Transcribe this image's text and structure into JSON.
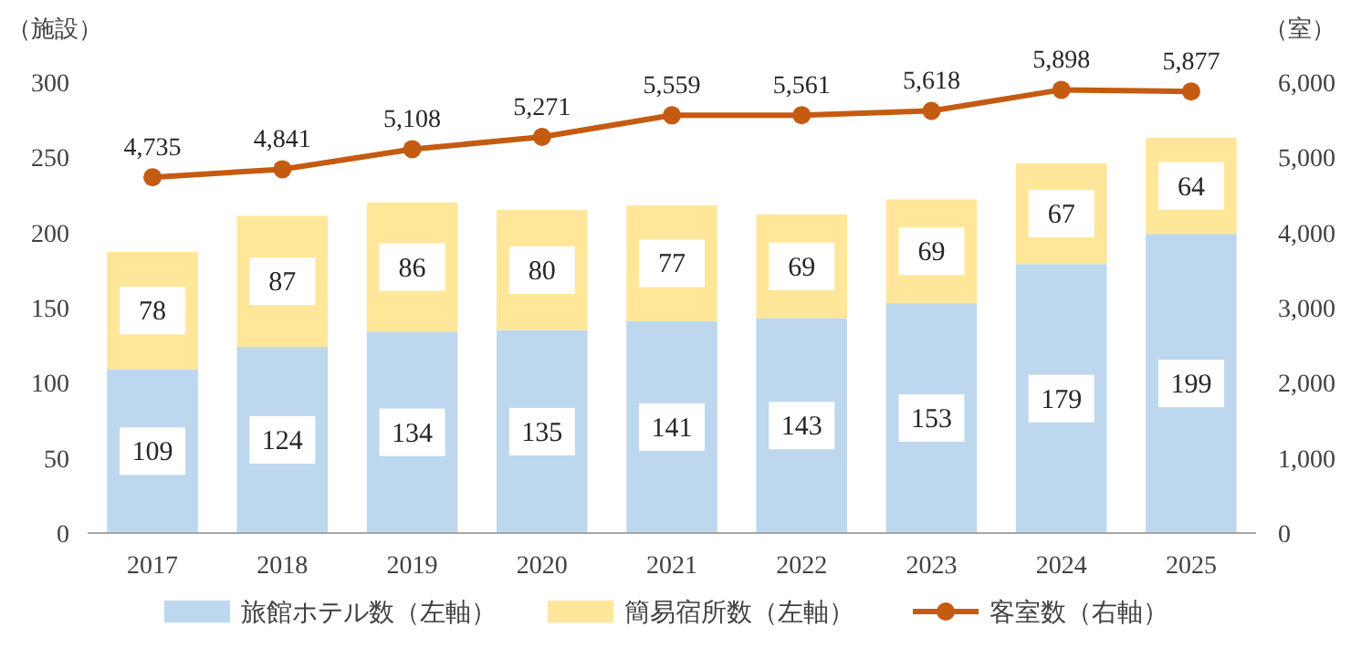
{
  "chart_data": {
    "type": "bar",
    "stacked": true,
    "categories": [
      "2017",
      "2018",
      "2019",
      "2020",
      "2021",
      "2022",
      "2023",
      "2024",
      "2025"
    ],
    "series": [
      {
        "name": "旅館ホテル数（左軸）",
        "color": "#bdd7ee",
        "values": [
          109,
          124,
          134,
          135,
          141,
          143,
          153,
          179,
          199
        ]
      },
      {
        "name": "簡易宿所数（左軸）",
        "color": "#ffe699",
        "values": [
          78,
          87,
          86,
          80,
          77,
          69,
          69,
          67,
          64
        ]
      },
      {
        "name": "客室数（右軸）",
        "type": "line",
        "axis": "y2",
        "color": "#c55a11",
        "marker": "circle",
        "values": [
          4735,
          4841,
          5108,
          5271,
          5559,
          5561,
          5618,
          5898,
          5877
        ],
        "value_labels": [
          "4,735",
          "4,841",
          "5,108",
          "5,271",
          "5,559",
          "5,561",
          "5,618",
          "5,898",
          "5,877"
        ]
      }
    ],
    "ylabel": "（施設）",
    "y2label": "（室）",
    "ylim": [
      0,
      300
    ],
    "yticks": [
      0,
      50,
      100,
      150,
      200,
      250,
      300
    ],
    "y2lim": [
      0,
      6000
    ],
    "y2ticks": [
      0,
      {
        "value": 1000,
        "label": "1,000"
      },
      {
        "value": 2000,
        "label": "2,000"
      },
      {
        "value": 3000,
        "label": "3,000"
      },
      {
        "value": 4000,
        "label": "4,000"
      },
      {
        "value": 5000,
        "label": "5,000"
      },
      {
        "value": 6000,
        "label": "6,000"
      }
    ],
    "data_labels": true,
    "legend": "bottom",
    "grid": false
  }
}
